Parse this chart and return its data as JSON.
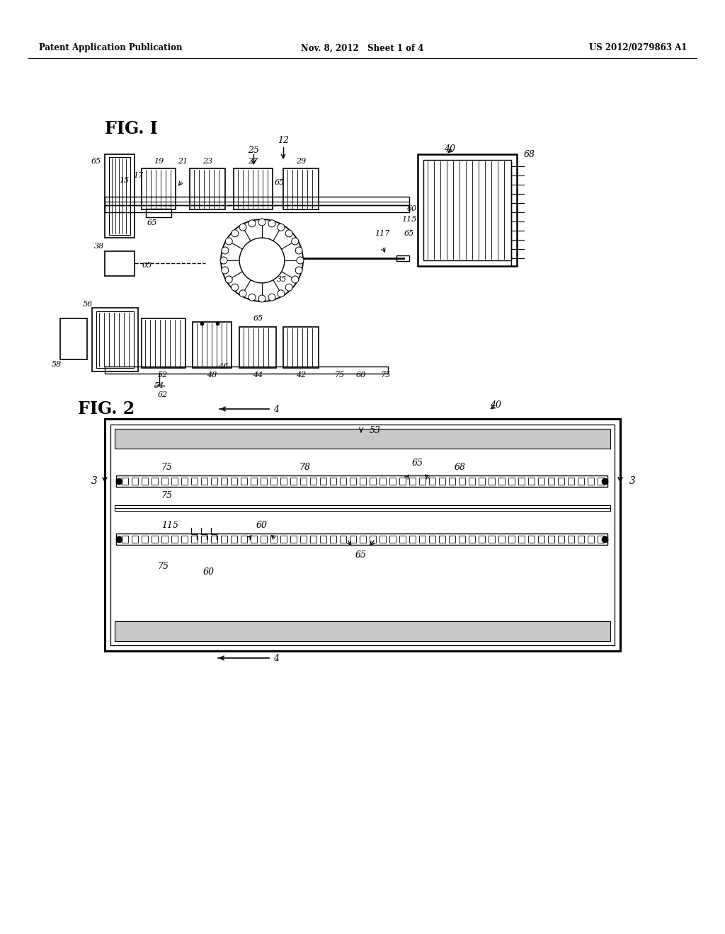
{
  "background_color": "#ffffff",
  "header_left": "Patent Application Publication",
  "header_mid": "Nov. 8, 2012   Sheet 1 of 4",
  "header_right": "US 2012/0279863 A1",
  "fig1_label": "FIG. I",
  "fig2_label": "FIG. 2"
}
